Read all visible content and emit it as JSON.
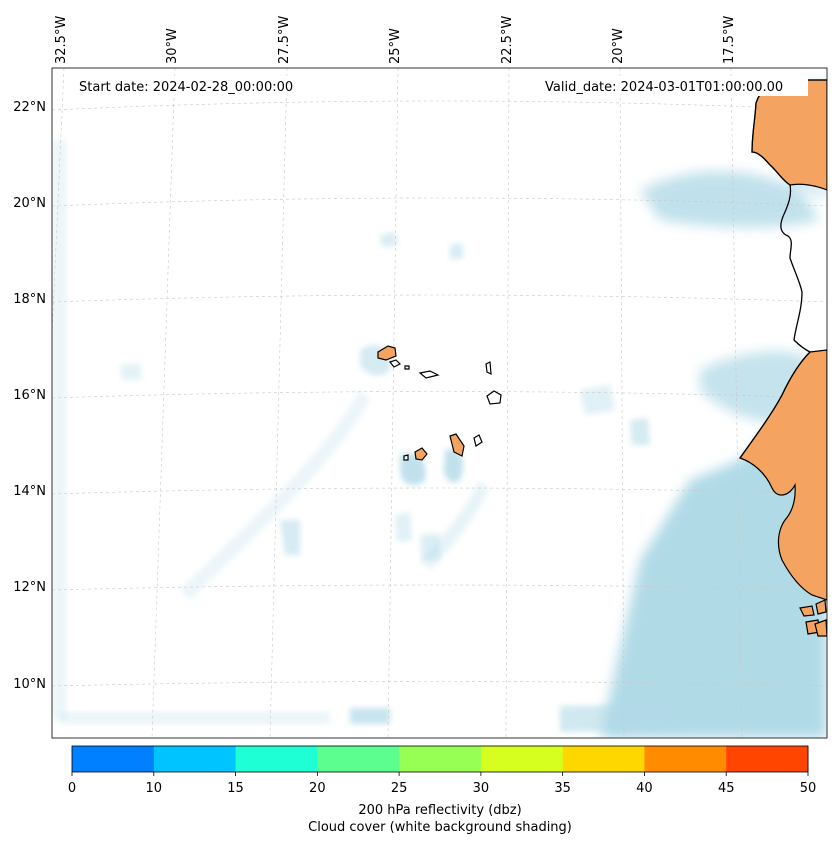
{
  "map": {
    "start_date_text": "Start date: 2024-02-28_00:00:00",
    "valid_date_text": "Valid_date: 2024-03-01T01:00:00.00",
    "lon_labels": [
      "32.5°W",
      "30°W",
      "27.5°W",
      "25°W",
      "22.5°W",
      "20°W",
      "17.5°W"
    ],
    "lat_labels": [
      "22°N",
      "20°N",
      "18°N",
      "16°N",
      "14°N",
      "12°N",
      "10°N"
    ],
    "cloud_color": "#add8e6",
    "land_color": "#f4a460"
  },
  "colorbar": {
    "label_line1": "200 hPa reflectivity (dbz)",
    "label_line2": "Cloud cover (white background shading)",
    "ticks": [
      "0",
      "10",
      "15",
      "20",
      "25",
      "30",
      "35",
      "40",
      "45",
      "50"
    ],
    "colors": [
      "#007fff",
      "#00c4ff",
      "#1fffd6",
      "#5cff8f",
      "#97ff54",
      "#d6ff1f",
      "#ffd700",
      "#ff8c00",
      "#ff4500"
    ]
  }
}
